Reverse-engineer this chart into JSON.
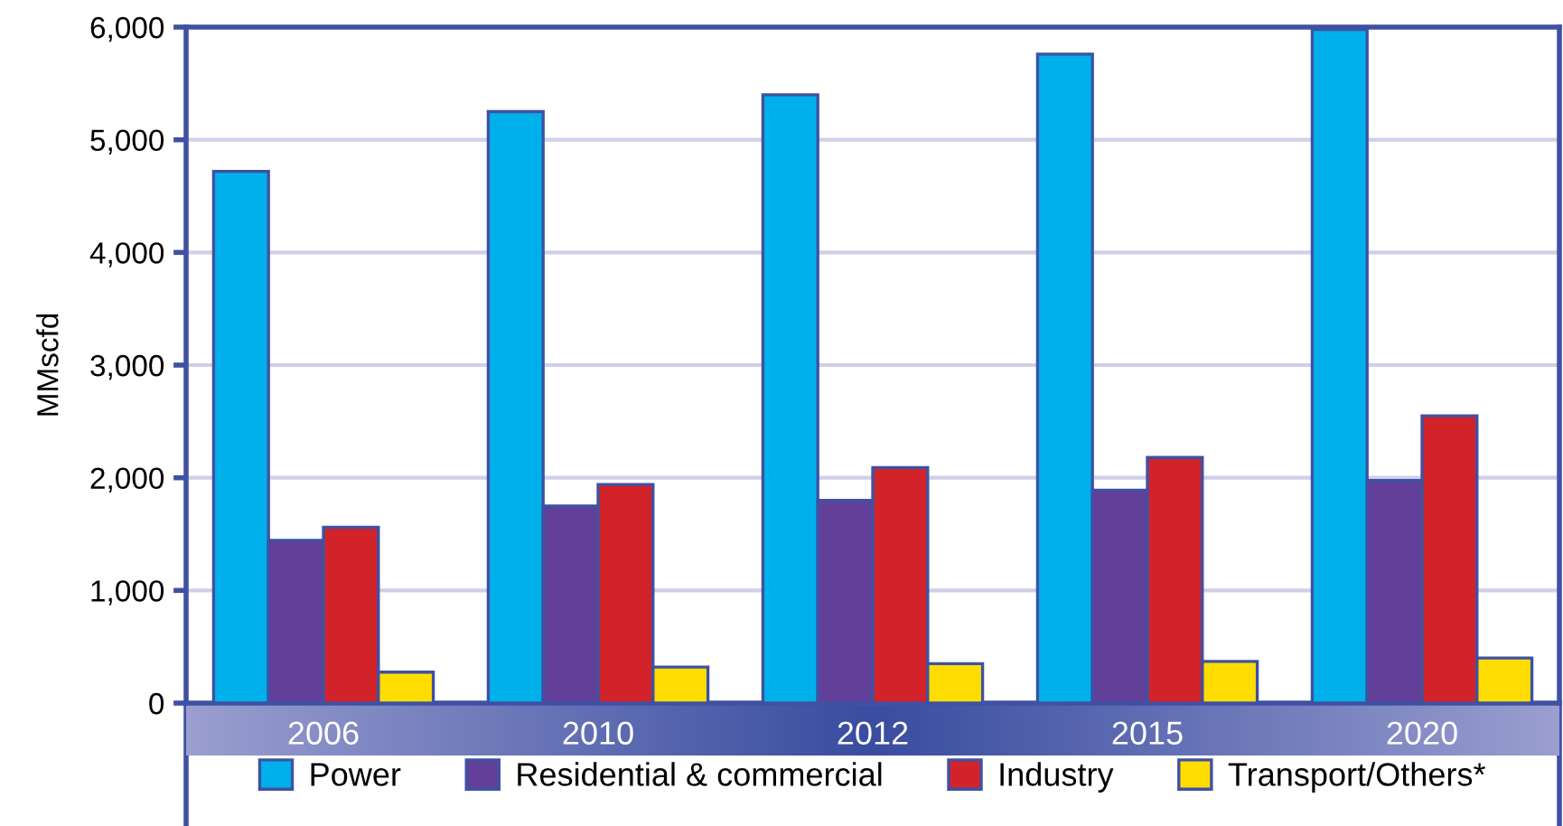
{
  "chart_data": {
    "type": "bar",
    "ylabel": "MMscfd",
    "categories": [
      "2006",
      "2010",
      "2012",
      "2015",
      "2020"
    ],
    "series": [
      {
        "name": "Power",
        "color": "#00b0ea",
        "values": [
          4720,
          5250,
          5400,
          5760,
          5980
        ]
      },
      {
        "name": "Residential & commercial",
        "color": "#62409a",
        "values": [
          1445,
          1750,
          1800,
          1890,
          1975
        ]
      },
      {
        "name": "Industry",
        "color": "#d2232a",
        "values": [
          1560,
          1940,
          2090,
          2180,
          2550
        ]
      },
      {
        "name": "Transport/Others*",
        "color": "#ffdd00",
        "values": [
          275,
          320,
          350,
          370,
          400
        ]
      }
    ],
    "ylim": [
      0,
      6000
    ],
    "yticks": [
      {
        "value": 0,
        "label": "0"
      },
      {
        "value": 1000,
        "label": "1,000"
      },
      {
        "value": 2000,
        "label": "2,000"
      },
      {
        "value": 3000,
        "label": "3,000"
      },
      {
        "value": 4000,
        "label": "4,000"
      },
      {
        "value": 5000,
        "label": "5,000"
      },
      {
        "value": 6000,
        "label": "6,000"
      }
    ],
    "grid": "y",
    "legend": "bottom"
  }
}
